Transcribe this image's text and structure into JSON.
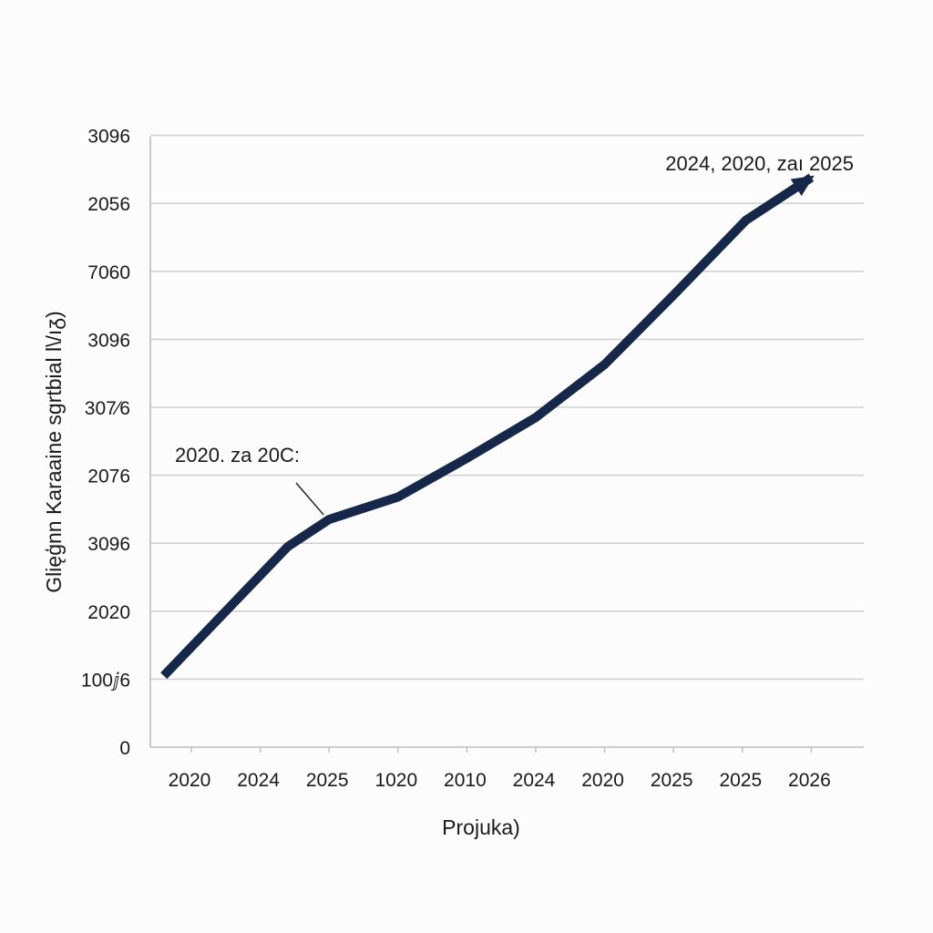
{
  "chart_data": {
    "type": "line",
    "title": "",
    "xlabel": "Projuka)",
    "ylabel": "Glięģnn Karaaine sgrtbial l\\/ıᵹ)",
    "x_tick_labels": [
      "2020",
      "2024",
      "2025",
      "1020",
      "2010",
      "2024",
      "2020",
      "2025",
      "2025",
      "2026"
    ],
    "y_tick_labels": [
      "0",
      "100ⅉ6",
      "2020",
      "3096",
      "2076",
      "307⁄6",
      "3096",
      "7060",
      "2056",
      "3096"
    ],
    "grid": true,
    "legend": "none",
    "ylim": [
      0,
      9
    ],
    "x": [
      0,
      0,
      0,
      0,
      0,
      0,
      0,
      0,
      0,
      0
    ],
    "series": [
      {
        "color": "#16284a",
        "points": [
          {
            "x": -0.4,
            "y": 1.05
          },
          {
            "x": 1.4,
            "y": 2.95
          },
          {
            "x": 2.0,
            "y": 3.35
          },
          {
            "x": 3.0,
            "y": 3.68
          },
          {
            "x": 4.0,
            "y": 4.25
          },
          {
            "x": 5.0,
            "y": 4.85
          },
          {
            "x": 6.0,
            "y": 5.63
          },
          {
            "x": 7.0,
            "y": 6.65
          },
          {
            "x": 8.05,
            "y": 7.75
          },
          {
            "x": 9.0,
            "y": 8.38
          }
        ]
      }
    ],
    "annotations": [
      {
        "text": "2020. za 20C:",
        "x": 2.0,
        "y": 3.35
      },
      {
        "text": "2024, 2020, zaı 2025",
        "x": 9.0,
        "y": 8.38
      }
    ]
  }
}
